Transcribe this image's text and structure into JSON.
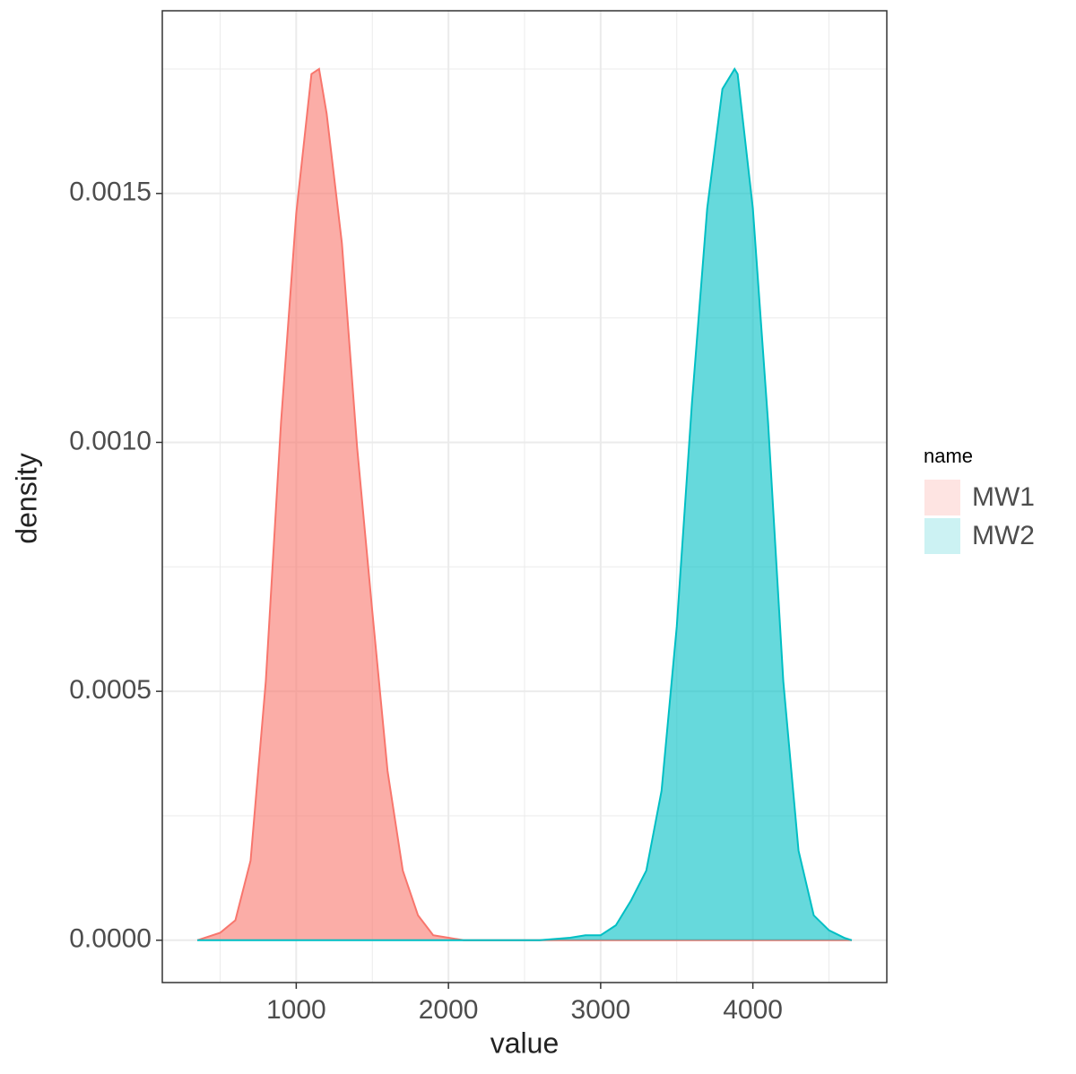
{
  "chart_data": {
    "type": "area",
    "x_label": "value",
    "y_label": "density",
    "xlim": [
      120,
      4880
    ],
    "ylim": [
      -8.5e-05,
      0.001867
    ],
    "xticks": [
      1000,
      2000,
      3000,
      4000
    ],
    "yticks": [
      {
        "value": 0,
        "label": "0.0000"
      },
      {
        "value": 0.0005,
        "label": "0.0005"
      },
      {
        "value": 0.001,
        "label": "0.0010"
      },
      {
        "value": 0.0015,
        "label": "0.0015"
      }
    ],
    "grid": true,
    "legend_title": "name",
    "legend_position": "right",
    "series": [
      {
        "name": "MW1",
        "color": "#F8766D",
        "x": [
          350,
          500,
          600,
          700,
          800,
          900,
          1000,
          1100,
          1150,
          1200,
          1300,
          1400,
          1500,
          1600,
          1700,
          1800,
          1900,
          2000,
          2100,
          2300,
          2500,
          2700,
          2900,
          3100,
          3300,
          3500,
          3700,
          3900,
          4100,
          4300,
          4500,
          4650
        ],
        "values": [
          0,
          1.5e-05,
          4e-05,
          0.00016,
          0.00052,
          0.00104,
          0.00146,
          0.00174,
          0.00175,
          0.00166,
          0.0014,
          0.00099,
          0.00066,
          0.00034,
          0.00014,
          5e-05,
          1e-05,
          5e-06,
          0,
          0,
          0,
          0,
          0,
          0,
          0,
          0,
          0,
          0,
          0,
          0,
          0,
          0
        ]
      },
      {
        "name": "MW2",
        "color": "#00BFC4",
        "x": [
          350,
          600,
          1000,
          1400,
          1800,
          2200,
          2600,
          2800,
          2900,
          3000,
          3100,
          3200,
          3300,
          3400,
          3500,
          3600,
          3700,
          3800,
          3880,
          3900,
          4000,
          4100,
          4200,
          4300,
          4400,
          4500,
          4600,
          4650
        ],
        "values": [
          0,
          0,
          0,
          0,
          0,
          0,
          0,
          5e-06,
          1e-05,
          1e-05,
          3e-05,
          8e-05,
          0.00014,
          0.0003,
          0.00063,
          0.00108,
          0.00147,
          0.00171,
          0.00175,
          0.00174,
          0.00147,
          0.00104,
          0.00052,
          0.00018,
          5e-05,
          2e-05,
          5e-06,
          0
        ]
      }
    ]
  }
}
